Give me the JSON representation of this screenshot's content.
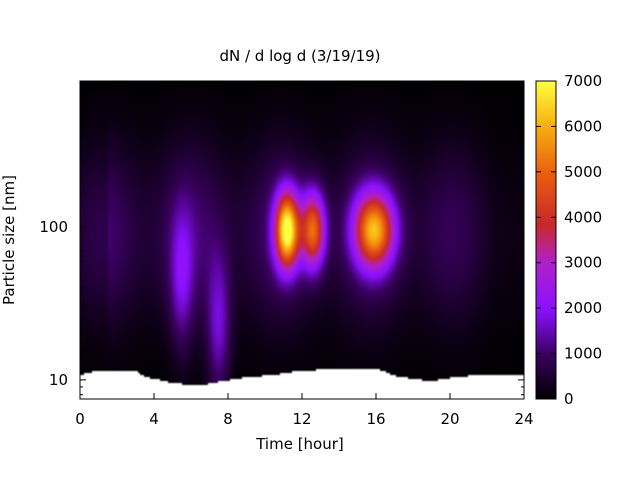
{
  "chart_data": {
    "type": "heatmap",
    "title": "dN / d log d (3/19/19)",
    "xlabel": "Time [hour]",
    "ylabel": "Particle size [nm]",
    "xlim": [
      0,
      24
    ],
    "x_ticks": [
      0,
      4,
      8,
      12,
      16,
      20,
      24
    ],
    "y_scale": "log",
    "ylim_nm": [
      7.5,
      900
    ],
    "y_ticks": [
      10,
      100
    ],
    "colorbar": {
      "min": 0,
      "max": 7000,
      "ticks": [
        0,
        1000,
        2000,
        3000,
        4000,
        5000,
        6000,
        7000
      ],
      "palette": "black-purple-red-orange-yellow"
    },
    "features": [
      {
        "time_hour": 11.2,
        "size_nm": 95,
        "peak_value": 6500
      },
      {
        "time_hour": 12.6,
        "size_nm": 95,
        "peak_value": 4500
      },
      {
        "time_hour": 15.9,
        "size_nm": 95,
        "peak_value": 5200
      },
      {
        "time_hour": 7.5,
        "size_nm": 22,
        "peak_value": 1500
      },
      {
        "time_hour": 5.5,
        "size_nm": 45,
        "peak_value": 1300
      }
    ],
    "approx_background_level": 1100,
    "lower_size_cutoff_nm": [
      [
        0,
        10.8
      ],
      [
        1,
        11.5
      ],
      [
        3,
        11.5
      ],
      [
        3.5,
        10.5
      ],
      [
        5,
        9.5
      ],
      [
        6.5,
        9.2
      ],
      [
        8.5,
        10.2
      ],
      [
        10.5,
        10.8
      ],
      [
        12,
        11.5
      ],
      [
        14,
        11.8
      ],
      [
        16,
        11.8
      ],
      [
        17.2,
        10.5
      ],
      [
        19,
        9.8
      ],
      [
        20.5,
        10.5
      ],
      [
        22,
        10.8
      ],
      [
        24,
        10.6
      ]
    ],
    "data_top_nm": 860
  }
}
